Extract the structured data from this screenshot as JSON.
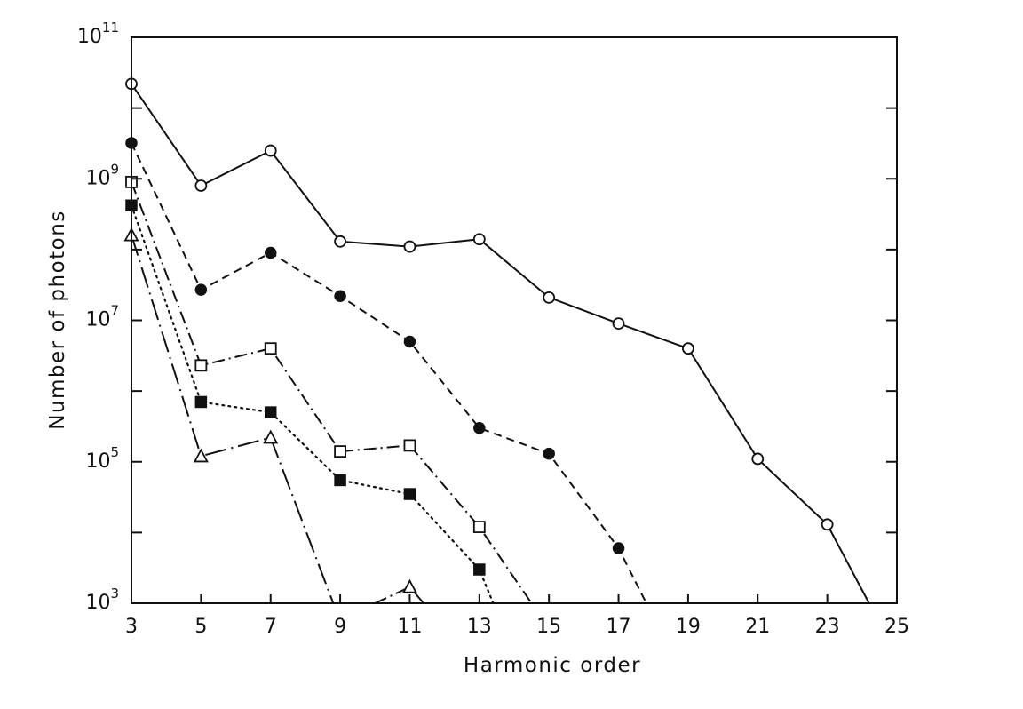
{
  "chart_data": {
    "type": "line",
    "title": "",
    "xlabel": "Harmonic order",
    "ylabel": "Number of photons",
    "xlim": [
      3,
      25
    ],
    "ylim": [
      1000,
      100000000000
    ],
    "y_scale": "log",
    "grid": false,
    "legend": "none",
    "x_ticks": [
      "3",
      "5",
      "7",
      "9",
      "11",
      "13",
      "15",
      "17",
      "19",
      "21",
      "23",
      "25"
    ],
    "y_ticks": [
      {
        "value": 1000,
        "base": "10",
        "exp": "3"
      },
      {
        "value": 100000,
        "base": "10",
        "exp": "5"
      },
      {
        "value": 10000000,
        "base": "10",
        "exp": "7"
      },
      {
        "value": 1000000000,
        "base": "10",
        "exp": "9"
      },
      {
        "value": 100000000000,
        "base": "10",
        "exp": "11"
      }
    ],
    "series": [
      {
        "marker": "open-circle",
        "line": "solid",
        "points": [
          [
            3,
            22000000000
          ],
          [
            5,
            800000000
          ],
          [
            7,
            2500000000
          ],
          [
            9,
            130000000
          ],
          [
            11,
            110000000
          ],
          [
            13,
            140000000
          ],
          [
            15,
            21000000
          ],
          [
            17,
            9000000
          ],
          [
            19,
            4000000
          ],
          [
            21,
            110000
          ],
          [
            23,
            13000
          ]
        ],
        "tail": [
          24.2,
          1000
        ]
      },
      {
        "marker": "filled-circle",
        "line": "dashed",
        "points": [
          [
            3,
            3200000000
          ],
          [
            5,
            27000000
          ],
          [
            7,
            90000000
          ],
          [
            9,
            22000000
          ],
          [
            11,
            5000000
          ],
          [
            13,
            300000
          ],
          [
            15,
            130000
          ],
          [
            17,
            6000
          ]
        ],
        "tail": [
          17.8,
          1000
        ]
      },
      {
        "marker": "open-square",
        "line": "dash-dot",
        "points": [
          [
            3,
            900000000
          ],
          [
            5,
            2300000
          ],
          [
            7,
            4000000
          ],
          [
            9,
            140000
          ],
          [
            11,
            170000
          ],
          [
            13,
            12000
          ]
        ],
        "tail": [
          14.5,
          1000
        ]
      },
      {
        "marker": "filled-square",
        "line": "dotted",
        "points": [
          [
            3,
            420000000
          ],
          [
            5,
            700000
          ],
          [
            7,
            500000
          ],
          [
            9,
            55000
          ],
          [
            11,
            35000
          ],
          [
            13,
            3000
          ]
        ],
        "tail": [
          13.4,
          1000
        ]
      },
      {
        "marker": "open-triangle",
        "line": "long-dash-dot",
        "points": [
          [
            3,
            160000000
          ],
          [
            5,
            120000
          ],
          [
            7,
            220000
          ]
        ],
        "tail": [
          8.8,
          1000
        ]
      },
      {
        "marker": "open-triangle",
        "line": "dash-dot",
        "points": [
          [
            11,
            1700
          ]
        ],
        "head": [
          10,
          1000
        ],
        "tail": [
          11.4,
          1000
        ]
      }
    ]
  }
}
